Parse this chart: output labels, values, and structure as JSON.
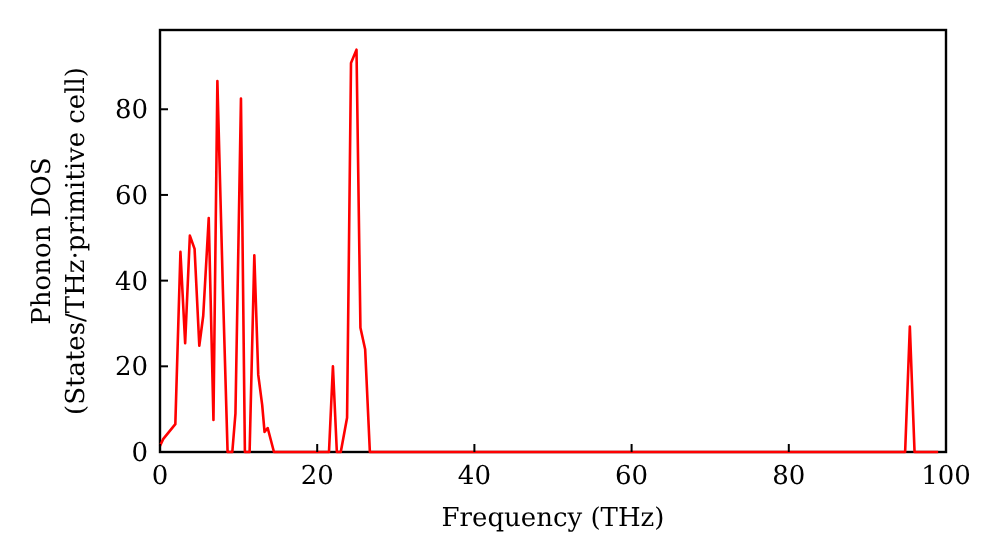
{
  "chart_data": {
    "type": "line",
    "xlabel": "Frequency (THz)",
    "ylabel": "Phonon DOS\n(States/THz·primitive cell)",
    "x": [
      0,
      0.4,
      1.95,
      2.6,
      3.2,
      3.8,
      4.4,
      5.0,
      5.5,
      6.2,
      6.8,
      7.3,
      8.0,
      8.6,
      9.2,
      9.6,
      10.3,
      10.8,
      11.4,
      12.0,
      12.5,
      13.0,
      13.3,
      13.7,
      14.5,
      21.5,
      22.0,
      22.5,
      23.0,
      23.8,
      24.3,
      25.0,
      25.5,
      26.1,
      26.7,
      94.8,
      95.4,
      96.0,
      99
    ],
    "series": [
      {
        "color": "#ff0000",
        "values": [
          1.4,
          3,
          6.5,
          46.7,
          25.4,
          50.5,
          47.4,
          24.8,
          31.8,
          54.6,
          7.5,
          86.6,
          38,
          0,
          0,
          9,
          82.5,
          0,
          0,
          45.9,
          18,
          11,
          4.7,
          5.6,
          0,
          0,
          20,
          0,
          0,
          8,
          90.8,
          93.9,
          29,
          24,
          0,
          0,
          29.3,
          0,
          0
        ]
      }
    ],
    "xlim": [
      0,
      100
    ],
    "ylim": [
      0,
      98.5
    ],
    "xticks": [
      0,
      20,
      40,
      60,
      80,
      100
    ],
    "yticks": [
      0,
      20,
      40,
      60,
      80
    ],
    "grid": false,
    "marker": "none",
    "line_style": "solid"
  }
}
